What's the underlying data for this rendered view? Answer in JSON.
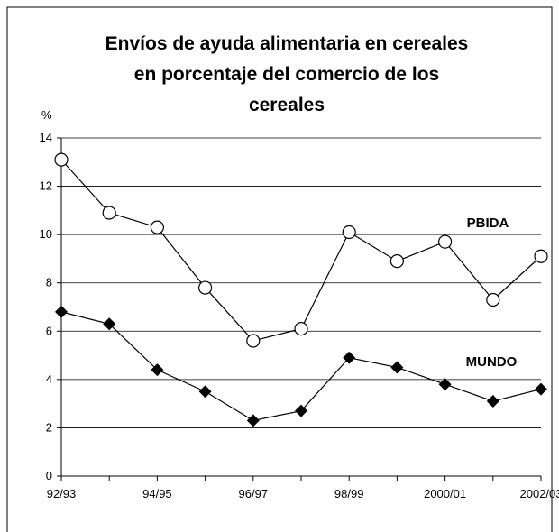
{
  "chart_data": {
    "type": "line",
    "title": [
      "Envíos de ayuda alimentaria en cereales",
      "en porcentaje del comercio de los",
      "cereales"
    ],
    "y_label": "%",
    "categories": [
      "92/93",
      null,
      "94/95",
      null,
      "96/97",
      null,
      "98/99",
      null,
      "2000/01",
      null,
      "2002/03"
    ],
    "series": [
      {
        "name": "PBIDA",
        "color": "#000000",
        "marker": "circle",
        "values": [
          13.1,
          10.9,
          10.3,
          7.8,
          5.6,
          6.1,
          10.1,
          8.9,
          9.7,
          7.3,
          9.1
        ]
      },
      {
        "name": "MUNDO",
        "color": "#000000",
        "marker": "diamond",
        "values": [
          6.8,
          6.3,
          4.4,
          3.5,
          2.3,
          2.7,
          4.9,
          4.5,
          3.8,
          3.1,
          3.6
        ]
      }
    ],
    "ylim": [
      0,
      14
    ],
    "yticks": [
      0,
      2,
      4,
      6,
      8,
      10,
      12,
      14
    ],
    "grid": true
  }
}
